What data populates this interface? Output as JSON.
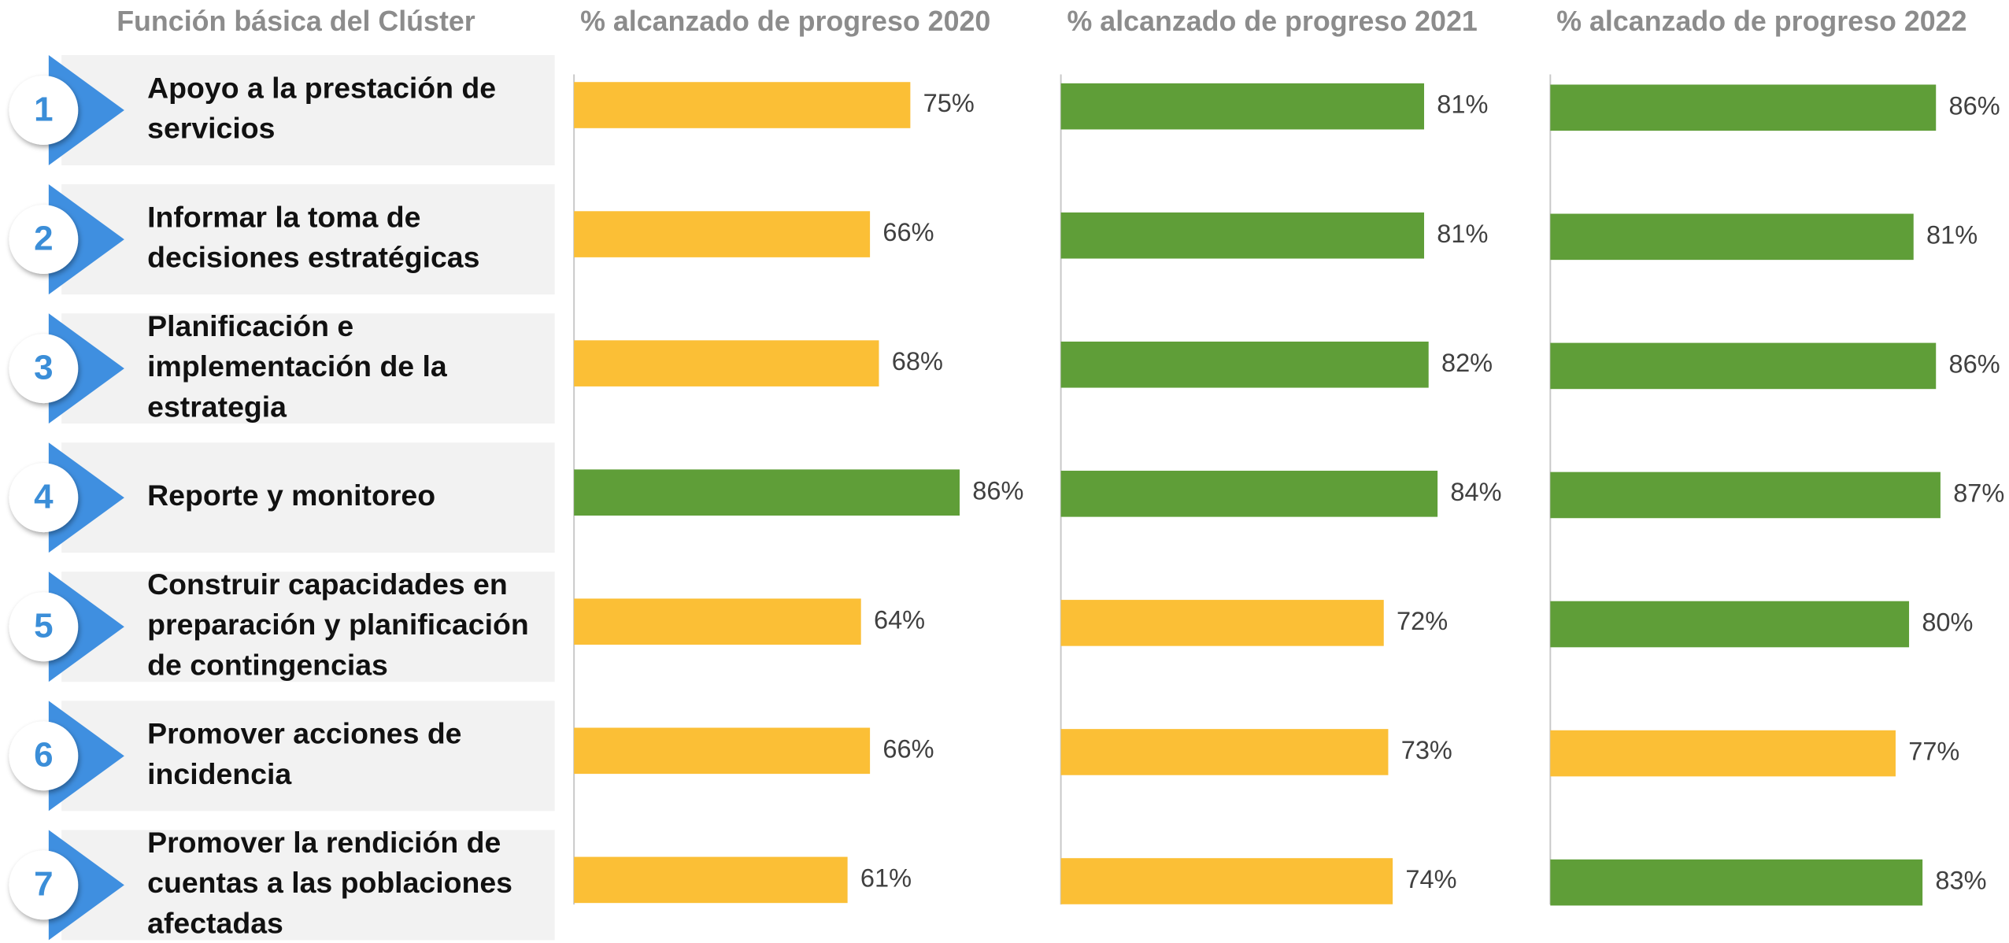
{
  "header": "Función básica del Clúster",
  "rows": [
    {
      "number": 1,
      "lines": [
        "Apoyo a la prestación de",
        "servicios"
      ]
    },
    {
      "number": 2,
      "lines": [
        "Informar la toma de",
        "decisiones estratégicas"
      ]
    },
    {
      "number": 3,
      "lines": [
        "Planificación e",
        "implementación de la",
        "estrategia"
      ]
    },
    {
      "number": 4,
      "lines": [
        "Reporte y monitoreo"
      ]
    },
    {
      "number": 5,
      "lines": [
        "Construir capacidades en",
        "preparación y planificación",
        "de contingencias"
      ]
    },
    {
      "number": 6,
      "lines": [
        "Promover acciones de",
        "incidencia"
      ]
    },
    {
      "number": 7,
      "lines": [
        "Promover la rendición de",
        "cuentas a las poblaciones",
        "afectadas"
      ]
    }
  ],
  "chart_data": [
    {
      "type": "bar",
      "title": "% alcanzado de progreso 2020",
      "xlim": [
        0,
        100
      ],
      "values": [
        75,
        66,
        68,
        86,
        64,
        66,
        61
      ],
      "value_labels": [
        "75%",
        "66%",
        "68%",
        "86%",
        "64%",
        "66%",
        "61%"
      ],
      "colors": [
        "#FBBF36",
        "#FBBF36",
        "#FBBF36",
        "#5F9E38",
        "#FBBF36",
        "#FBBF36",
        "#FBBF36"
      ]
    },
    {
      "type": "bar",
      "title": "% alcanzado de progreso 2021",
      "xlim": [
        0,
        100
      ],
      "values": [
        81,
        81,
        82,
        84,
        72,
        73,
        74
      ],
      "value_labels": [
        "81%",
        "81%",
        "82%",
        "84%",
        "72%",
        "73%",
        "74%"
      ],
      "colors": [
        "#5F9E38",
        "#5F9E38",
        "#5F9E38",
        "#5F9E38",
        "#FBBF36",
        "#FBBF36",
        "#FBBF36"
      ]
    },
    {
      "type": "bar",
      "title": "% alcanzado de progreso 2022",
      "xlim": [
        0,
        100
      ],
      "values": [
        86,
        81,
        86,
        87,
        80,
        77,
        83
      ],
      "value_labels": [
        "86%",
        "81%",
        "86%",
        "87%",
        "80%",
        "77%",
        "83%"
      ],
      "colors": [
        "#5F9E38",
        "#5F9E38",
        "#5F9E38",
        "#5F9E38",
        "#5F9E38",
        "#FBBF36",
        "#5F9E38"
      ]
    }
  ]
}
